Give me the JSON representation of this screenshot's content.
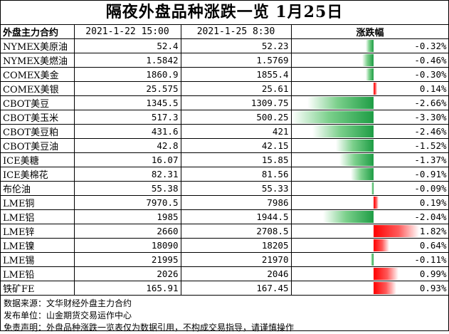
{
  "title": "隔夜外盘品种涨跌一览 1月25日",
  "table": {
    "headers": [
      "外盘主力合约",
      "2021-1-22 15:00",
      "2021-1-25 8:30",
      "涨跌幅"
    ]
  },
  "chart_data": {
    "type": "table",
    "title": "隔夜外盘品种涨跌一览 1月25日",
    "columns": [
      "外盘主力合约",
      "2021-1-22 15:00",
      "2021-1-25 8:30",
      "涨跌幅"
    ],
    "bar_center_fraction": 0.52,
    "bar_scale_max": 3.3,
    "rows": [
      {
        "name": "NYMEX美原油",
        "prev": "52.4",
        "curr": "52.23",
        "change": -0.32,
        "change_text": "-0.32%"
      },
      {
        "name": "NYMEX美燃油",
        "prev": "1.5842",
        "curr": "1.5769",
        "change": -0.46,
        "change_text": "-0.46%"
      },
      {
        "name": "COMEX美金",
        "prev": "1860.9",
        "curr": "1855.4",
        "change": -0.3,
        "change_text": "-0.30%"
      },
      {
        "name": "COMEX美银",
        "prev": "25.575",
        "curr": "25.61",
        "change": 0.14,
        "change_text": "0.14%"
      },
      {
        "name": "CBOT美豆",
        "prev": "1345.5",
        "curr": "1309.75",
        "change": -2.66,
        "change_text": "-2.66%"
      },
      {
        "name": "CBOT美玉米",
        "prev": "517.3",
        "curr": "500.25",
        "change": -3.3,
        "change_text": "-3.30%"
      },
      {
        "name": "CBOT美豆粕",
        "prev": "431.6",
        "curr": "421",
        "change": -2.46,
        "change_text": "-2.46%"
      },
      {
        "name": "CBOT美豆油",
        "prev": "42.8",
        "curr": "42.15",
        "change": -1.52,
        "change_text": "-1.52%"
      },
      {
        "name": "ICE美糖",
        "prev": "16.07",
        "curr": "15.85",
        "change": -1.37,
        "change_text": "-1.37%"
      },
      {
        "name": "ICE美棉花",
        "prev": "82.31",
        "curr": "81.56",
        "change": -0.91,
        "change_text": "-0.91%"
      },
      {
        "name": "布伦油",
        "prev": "55.38",
        "curr": "55.33",
        "change": -0.09,
        "change_text": "-0.09%"
      },
      {
        "name": "LME铜",
        "prev": "7970.5",
        "curr": "7986",
        "change": 0.19,
        "change_text": "0.19%"
      },
      {
        "name": "LME铝",
        "prev": "1985",
        "curr": "1944.5",
        "change": -2.04,
        "change_text": "-2.04%"
      },
      {
        "name": "LME锌",
        "prev": "2660",
        "curr": "2708.5",
        "change": 1.82,
        "change_text": "1.82%"
      },
      {
        "name": "LME镍",
        "prev": "18090",
        "curr": "18205",
        "change": 0.64,
        "change_text": "0.64%"
      },
      {
        "name": "LME锡",
        "prev": "21995",
        "curr": "21970",
        "change": -0.11,
        "change_text": "-0.11%"
      },
      {
        "name": "LME铅",
        "prev": "2026",
        "curr": "2046",
        "change": 0.99,
        "change_text": "0.99%"
      },
      {
        "name": "铁矿FE",
        "prev": "165.91",
        "curr": "167.45",
        "change": 0.93,
        "change_text": "0.93%"
      }
    ],
    "colors": {
      "negative": "#1e9d45",
      "positive": "#ff0000"
    }
  },
  "notes": [
    "数据来源：文华财经外盘主力合约",
    "发布单位：山金期货交易运作中心",
    "免责声明：外盘品种涨跌一览表仅为数据引用，不构成交易指导，请谨慎操作"
  ]
}
